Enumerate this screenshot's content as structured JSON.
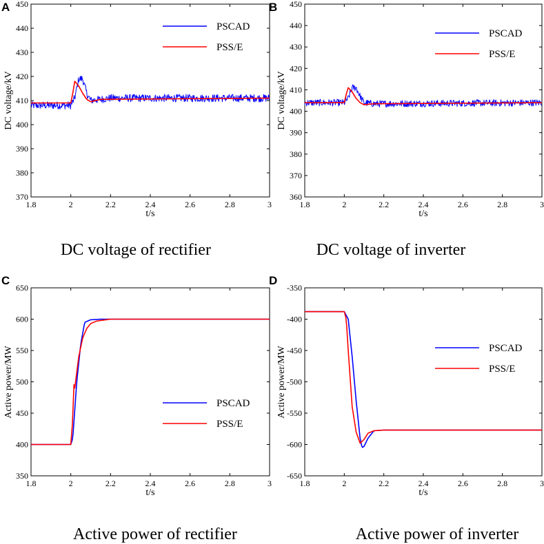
{
  "colors": {
    "pscad": "#0000ff",
    "psse": "#ff0000"
  },
  "chart_data": [
    {
      "panel": "A",
      "type": "line",
      "caption": "DC voltage of rectifier",
      "xlabel": "t/s",
      "ylabel": "DC voltage/kV",
      "xlim": [
        1.8,
        3
      ],
      "ylim": [
        370,
        450
      ],
      "xticks": [
        "1.8",
        "2",
        "2.2",
        "2.4",
        "2.6",
        "2.8",
        "3"
      ],
      "yticks": [
        "370",
        "380",
        "390",
        "400",
        "410",
        "420",
        "430",
        "440",
        "450"
      ],
      "legend_position": "top-right",
      "series": [
        {
          "name": "PSCAD",
          "color": "#0000ff",
          "noise": 1.6,
          "x": [
            1.8,
            2.0,
            2.02,
            2.04,
            2.06,
            2.08,
            2.1,
            2.15,
            2.2,
            3.0
          ],
          "y": [
            408,
            408,
            411,
            419,
            419,
            413,
            410,
            410.5,
            411,
            411
          ]
        },
        {
          "name": "PSS/E",
          "color": "#ff0000",
          "noise": 0,
          "x": [
            1.8,
            2.0,
            2.01,
            2.02,
            2.04,
            2.06,
            2.08,
            2.1,
            2.15,
            3.0
          ],
          "y": [
            409,
            409,
            413,
            418,
            416,
            413,
            410.5,
            409.5,
            410.5,
            411
          ]
        }
      ]
    },
    {
      "panel": "B",
      "type": "line",
      "caption": "DC voltage of inverter",
      "xlabel": "t/s",
      "ylabel": "DC voltage/kV",
      "xlim": [
        1.8,
        3
      ],
      "ylim": [
        360,
        450
      ],
      "xticks": [
        "1.8",
        "2",
        "2.2",
        "2.4",
        "2.6",
        "2.8",
        "3"
      ],
      "yticks": [
        "360",
        "370",
        "380",
        "390",
        "400",
        "410",
        "420",
        "430",
        "440",
        "450"
      ],
      "legend_position": "top-right",
      "series": [
        {
          "name": "PSCAD",
          "color": "#0000ff",
          "noise": 1.6,
          "x": [
            1.8,
            2.0,
            2.02,
            2.04,
            2.06,
            2.08,
            2.1,
            2.15,
            3.0
          ],
          "y": [
            404,
            404,
            406,
            411,
            411,
            407,
            404,
            403.5,
            404
          ]
        },
        {
          "name": "PSS/E",
          "color": "#ff0000",
          "noise": 0,
          "x": [
            1.8,
            2.0,
            2.01,
            2.02,
            2.04,
            2.06,
            2.08,
            2.1,
            2.15,
            3.0
          ],
          "y": [
            404,
            404,
            408,
            411,
            409,
            406,
            404,
            403,
            403.5,
            404
          ]
        }
      ]
    },
    {
      "panel": "C",
      "type": "line",
      "caption": "Active power of rectifier",
      "xlabel": "t/s",
      "ylabel": "Active power/MW",
      "xlim": [
        1.8,
        3
      ],
      "ylim": [
        350,
        650
      ],
      "xticks": [
        "1.8",
        "2",
        "2.2",
        "2.4",
        "2.6",
        "2.8",
        "3"
      ],
      "yticks": [
        "350",
        "400",
        "450",
        "500",
        "550",
        "600",
        "650"
      ],
      "legend_position": "bottom-right",
      "series": [
        {
          "name": "PSCAD",
          "color": "#0000ff",
          "noise": 0,
          "x": [
            1.8,
            2.0,
            2.01,
            2.03,
            2.05,
            2.07,
            2.1,
            2.15,
            3.0
          ],
          "y": [
            400,
            400,
            410,
            500,
            560,
            595,
            599,
            600,
            600
          ]
        },
        {
          "name": "PSS/E",
          "color": "#ff0000",
          "noise": 0,
          "x": [
            1.8,
            2.0,
            2.01,
            2.015,
            2.02,
            2.04,
            2.06,
            2.08,
            2.1,
            2.13,
            2.2,
            3.0
          ],
          "y": [
            400,
            400,
            440,
            497,
            490,
            540,
            570,
            585,
            593,
            597,
            600,
            600
          ]
        }
      ]
    },
    {
      "panel": "D",
      "type": "line",
      "caption": "Active power of inverter",
      "xlabel": "t/s",
      "ylabel": "Active power/MW",
      "xlim": [
        1.8,
        3
      ],
      "ylim": [
        -650,
        -350
      ],
      "xticks": [
        "1.8",
        "2",
        "2.2",
        "2.4",
        "2.6",
        "2.8",
        "3"
      ],
      "yticks": [
        "-650",
        "-600",
        "-550",
        "-500",
        "-450",
        "-400",
        "-350"
      ],
      "legend_position": "top-right",
      "series": [
        {
          "name": "PSCAD",
          "color": "#0000ff",
          "noise": 0,
          "x": [
            1.8,
            2.0,
            2.02,
            2.04,
            2.06,
            2.08,
            2.09,
            2.1,
            2.12,
            2.15,
            2.2,
            3.0
          ],
          "y": [
            -388,
            -388,
            -400,
            -460,
            -530,
            -590,
            -605,
            -603,
            -590,
            -578,
            -577,
            -577
          ]
        },
        {
          "name": "PSS/E",
          "color": "#ff0000",
          "noise": 0,
          "x": [
            1.8,
            2.0,
            2.01,
            2.02,
            2.04,
            2.06,
            2.08,
            2.1,
            2.12,
            2.15,
            2.2,
            3.0
          ],
          "y": [
            -388,
            -388,
            -400,
            -450,
            -540,
            -580,
            -598,
            -592,
            -582,
            -578,
            -577,
            -577
          ]
        }
      ]
    }
  ]
}
